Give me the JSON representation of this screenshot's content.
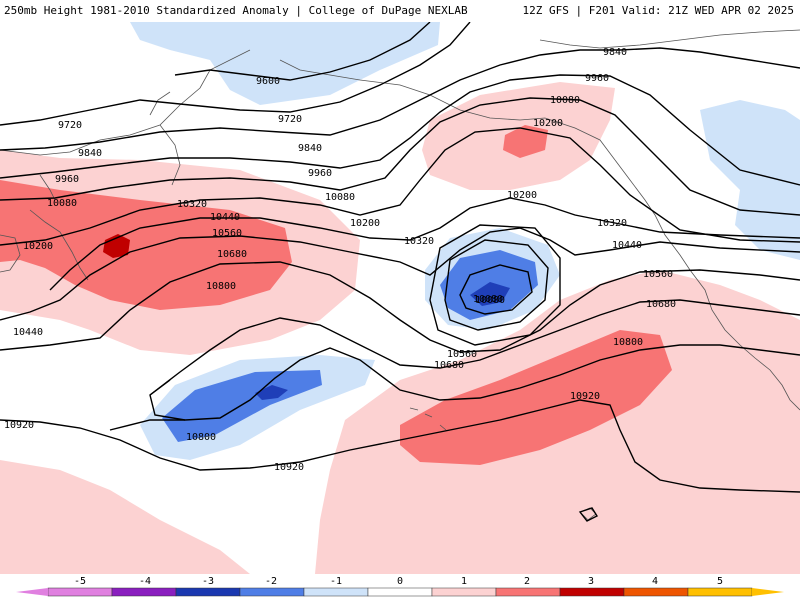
{
  "header": {
    "title_left": "250mb Height 1981-2010 Standardized Anomaly | College of DuPage NEXLAB",
    "title_right": "12Z GFS | F201 Valid: 21Z WED APR 02 2025"
  },
  "colors": {
    "pos1": "#fcd2d2",
    "pos2": "#f77474",
    "pos3": "#c00000",
    "neg1": "#cfe3f9",
    "neg2": "#4f7ee6",
    "neg3": "#1f3fb8",
    "contour": "#000000",
    "coast": "#555555"
  },
  "contour_labels": [
    {
      "text": "9600"
    },
    {
      "text": "9720"
    },
    {
      "text": "9720"
    },
    {
      "text": "9840"
    },
    {
      "text": "9840"
    },
    {
      "text": "9840"
    },
    {
      "text": "9960"
    },
    {
      "text": "9960"
    },
    {
      "text": "9960"
    },
    {
      "text": "10080"
    },
    {
      "text": "10080"
    },
    {
      "text": "10080"
    },
    {
      "text": "10080"
    },
    {
      "text": "10200"
    },
    {
      "text": "10200"
    },
    {
      "text": "10200"
    },
    {
      "text": "10200"
    },
    {
      "text": "10320"
    },
    {
      "text": "10320"
    },
    {
      "text": "10320"
    },
    {
      "text": "10440"
    },
    {
      "text": "10440"
    },
    {
      "text": "10440"
    },
    {
      "text": "10560"
    },
    {
      "text": "10560"
    },
    {
      "text": "10560"
    },
    {
      "text": "10680"
    },
    {
      "text": "10680"
    },
    {
      "text": "10680"
    },
    {
      "text": "10800"
    },
    {
      "text": "10800"
    },
    {
      "text": "10800"
    },
    {
      "text": "10920"
    },
    {
      "text": "10920"
    },
    {
      "text": "10920"
    },
    {
      "text": "10080"
    }
  ],
  "colorbar": {
    "ticks": [
      "-5",
      "-4",
      "-3",
      "-2",
      "-1",
      "0",
      "1",
      "2",
      "3",
      "4",
      "5"
    ],
    "bins": [
      {
        "color": "#e080e0"
      },
      {
        "color": "#8a1fbf"
      },
      {
        "color": "#1a38b0"
      },
      {
        "color": "#4f7ee6"
      },
      {
        "color": "#cfe3f9"
      },
      {
        "color": "#ffffff"
      },
      {
        "color": "#fcd2d2"
      },
      {
        "color": "#f77474"
      },
      {
        "color": "#c00000"
      },
      {
        "color": "#ee5500"
      },
      {
        "color": "#ffc000"
      }
    ]
  }
}
